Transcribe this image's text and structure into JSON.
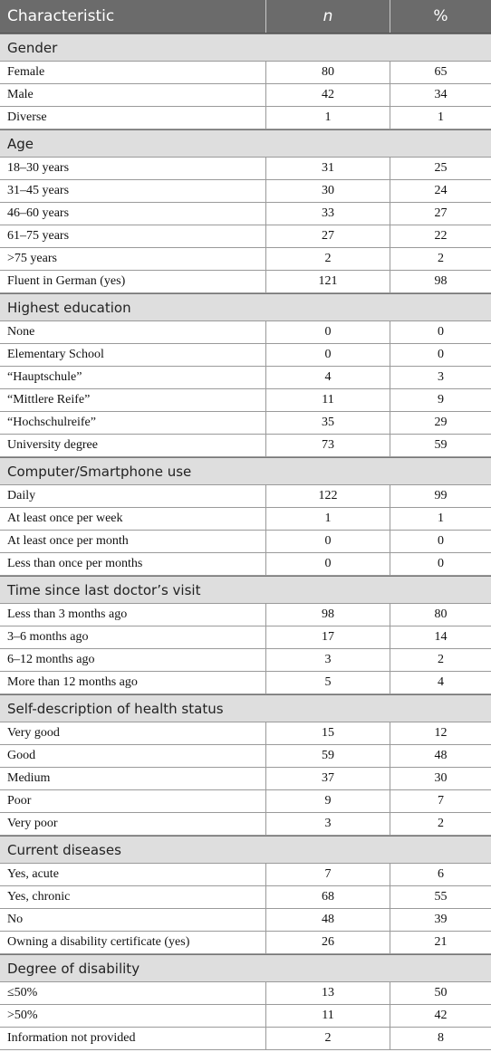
{
  "header": [
    "Characteristic",
    "n",
    "%"
  ],
  "sections": [
    {
      "title": "Gender",
      "rows": [
        [
          "Female",
          80,
          65
        ],
        [
          "Male",
          42,
          34
        ],
        [
          "Diverse",
          1,
          1
        ]
      ]
    },
    {
      "title": "Age",
      "rows": [
        [
          "18–30 years",
          31,
          25
        ],
        [
          "31–45 years",
          30,
          24
        ],
        [
          "46–60 years",
          33,
          27
        ],
        [
          "61–75 years",
          27,
          22
        ],
        [
          ">75 years",
          2,
          2
        ],
        [
          "Fluent in German (yes)",
          121,
          98
        ]
      ]
    },
    {
      "title": "Highest education",
      "rows": [
        [
          "None",
          0,
          0
        ],
        [
          "Elementary School",
          0,
          0
        ],
        [
          "“Hauptschule”",
          4,
          3
        ],
        [
          "“Mittlere Reife”",
          11,
          9
        ],
        [
          "“Hochschulreife”",
          35,
          29
        ],
        [
          "University degree",
          73,
          59
        ]
      ]
    },
    {
      "title": "Computer/Smartphone use",
      "rows": [
        [
          "Daily",
          122,
          99
        ],
        [
          "At least once per week",
          1,
          1
        ],
        [
          "At least once per month",
          0,
          0
        ],
        [
          "Less than once per months",
          0,
          0
        ]
      ]
    },
    {
      "title": "Time since last doctor’s visit",
      "rows": [
        [
          "Less than 3 months ago",
          98,
          80
        ],
        [
          "3–6 months ago",
          17,
          14
        ],
        [
          "6–12 months ago",
          3,
          2
        ],
        [
          "More than 12 months ago",
          5,
          4
        ]
      ]
    },
    {
      "title": "Self-description of health status",
      "rows": [
        [
          "Very good",
          15,
          12
        ],
        [
          "Good",
          59,
          48
        ],
        [
          "Medium",
          37,
          30
        ],
        [
          "Poor",
          9,
          7
        ],
        [
          "Very poor",
          3,
          2
        ]
      ]
    },
    {
      "title": "Current diseases",
      "rows": [
        [
          "Yes, acute",
          7,
          6
        ],
        [
          "Yes, chronic",
          68,
          55
        ],
        [
          "No",
          48,
          39
        ],
        [
          "Owning a disability certificate (yes)",
          26,
          21
        ]
      ]
    },
    {
      "title": "Degree of disability",
      "rows": [
        [
          "≤50%",
          13,
          50
        ],
        [
          ">50%",
          11,
          42
        ],
        [
          "Information not provided",
          2,
          8
        ]
      ]
    }
  ]
}
